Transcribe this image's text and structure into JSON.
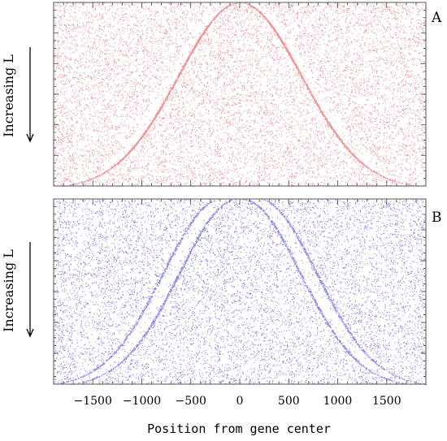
{
  "chart_data": [
    {
      "type": "scatter",
      "panel": "A",
      "ylabel": "Increasing L",
      "color": "#e03a3a",
      "xlim": [
        -1900,
        1900
      ],
      "ridge": {
        "center_x": 0,
        "apex_half_width": 0,
        "base_half_width": 1820,
        "profile": "bell",
        "style": "single dark line with depleted band outside"
      },
      "background": "uniform random dots"
    },
    {
      "type": "scatter",
      "panel": "B",
      "ylabel": "Increasing L",
      "color": "#3a3ad8",
      "xlim": [
        -1900,
        1900
      ],
      "ridge": {
        "center_x": 0,
        "apex_half_width": 110,
        "base_half_width": 1820,
        "profile": "bell",
        "style": "light depleted band bordered by dense edges"
      },
      "background": "uniform random dots"
    }
  ],
  "axis": {
    "xticks": [
      -1500,
      -1000,
      -500,
      0,
      500,
      1000,
      1500
    ],
    "xtick_labels": [
      "−1500",
      "−1000",
      "−500",
      "0",
      "500",
      "1000",
      "1500"
    ],
    "xlabel": "Position from gene center"
  },
  "colors": {
    "red": "#e03a3a",
    "blue": "#3a3ad8",
    "frame": "#555555"
  }
}
